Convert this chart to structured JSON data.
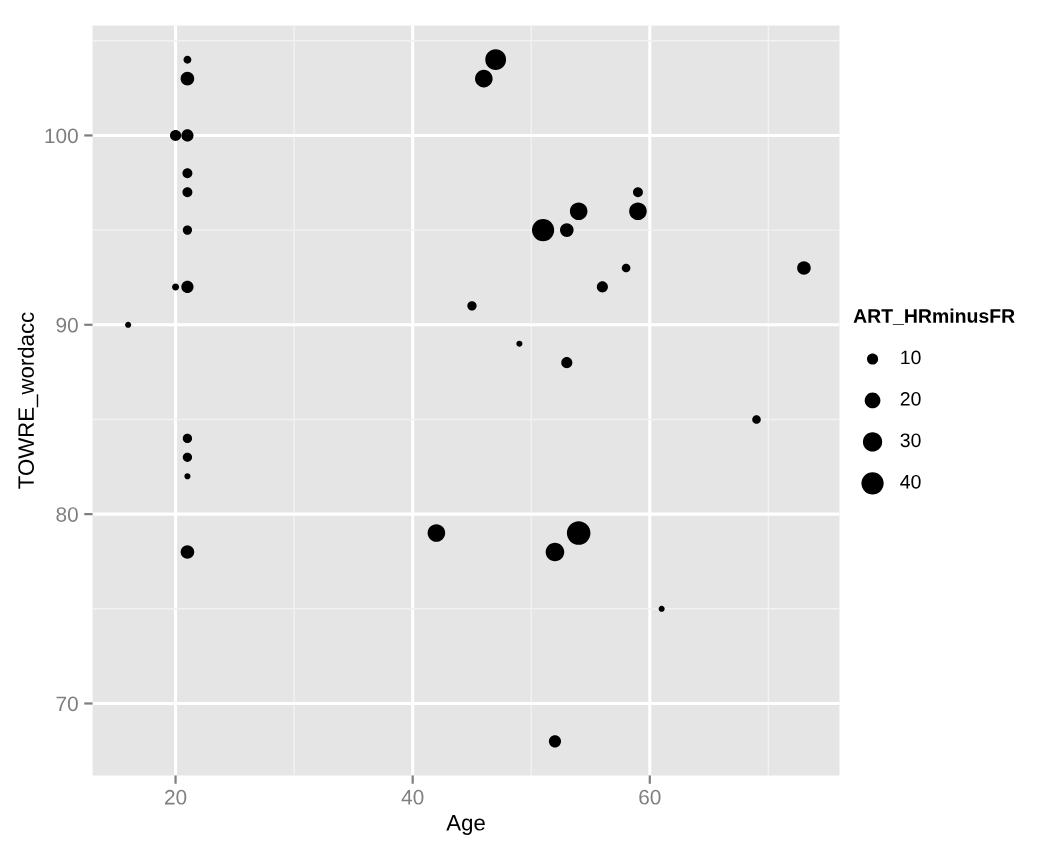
{
  "chart_data": {
    "type": "bubble",
    "xlabel": "Age",
    "ylabel": "TOWRE_wordacc",
    "legend_title": "ART_HRminusFR",
    "grid": true,
    "marker": "circle",
    "xlim": [
      13,
      76
    ],
    "xticks": [
      20,
      40,
      60
    ],
    "ylim": [
      66.2,
      105.8
    ],
    "yticks": [
      70,
      80,
      90,
      100
    ],
    "size_legend": [
      10,
      20,
      30,
      40
    ],
    "series": [
      {
        "color": "#000000",
        "x": [
          21,
          21,
          20,
          21,
          21,
          21,
          21,
          20,
          21,
          16,
          21,
          21,
          21,
          21,
          42,
          45,
          46,
          47,
          49,
          51,
          53,
          54,
          53,
          52,
          54,
          52,
          56,
          58,
          59,
          59,
          61,
          69,
          73
        ],
        "values": [
          104,
          103,
          100,
          100,
          98,
          97,
          95,
          92,
          92,
          90,
          84,
          83,
          82,
          78,
          79,
          91,
          103,
          104,
          89,
          95,
          95,
          96,
          88,
          78,
          79,
          68,
          92,
          93,
          97,
          96,
          75,
          85,
          93
        ],
        "sizes": [
          5,
          15,
          10,
          12,
          8,
          8,
          7,
          4,
          12,
          3,
          7,
          7,
          3,
          15,
          25,
          7,
          25,
          35,
          3,
          40,
          15,
          25,
          10,
          28,
          45,
          12,
          10,
          6,
          8,
          25,
          3,
          6,
          15
        ]
      }
    ]
  }
}
